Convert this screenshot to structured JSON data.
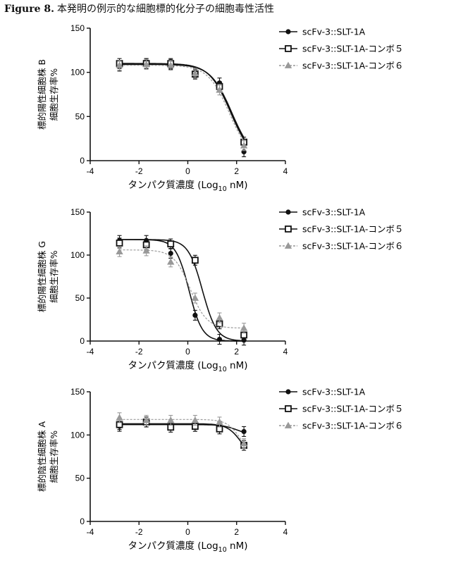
{
  "figure": {
    "label": "Figure 8.",
    "title": "本発明の例示的な細胞標的化分子の細胞毒性活性"
  },
  "chart_data": [
    {
      "type": "line",
      "xlabel_main": "タンパク質濃度 (Log",
      "xlabel_sub": "10",
      "xlabel_end": " nM)",
      "ylabel_lines": [
        "標的陽性細胞株 B",
        "細胞生存率%"
      ],
      "xlim": [
        -4,
        4
      ],
      "ylim": [
        0,
        150
      ],
      "xticks": [
        -4,
        -2,
        0,
        2,
        4
      ],
      "yticks": [
        0,
        50,
        100,
        150
      ],
      "series": [
        {
          "name": "scFv-3::SLT-1A",
          "marker": "circle",
          "color": "#111111",
          "x": [
            -2.8,
            -1.7,
            -0.7,
            0.3,
            1.3,
            2.3
          ],
          "y": [
            107,
            110,
            109,
            100,
            88,
            10
          ],
          "curve": {
            "top": 109,
            "bottom": 0,
            "ec50": 1.8,
            "hill": 1.0
          }
        },
        {
          "name": "scFv-3::SLT-1A-コンボ５",
          "marker": "square",
          "color": "#111111",
          "x": [
            -2.8,
            -1.7,
            -0.7,
            0.3,
            1.3,
            2.3
          ],
          "y": [
            110,
            110,
            110,
            98,
            84,
            21
          ],
          "curve": {
            "top": 110,
            "bottom": 0,
            "ec50": 1.75,
            "hill": 1.0
          }
        },
        {
          "name": "scFv-3::SLT-1A-コンボ６",
          "marker": "triangle",
          "color": "#999999",
          "x": [
            -2.8,
            -1.7,
            -0.7,
            0.3,
            1.3,
            2.3
          ],
          "y": [
            108,
            109,
            108,
            99,
            80,
            17
          ],
          "curve": {
            "top": 108,
            "bottom": 0,
            "ec50": 1.7,
            "hill": 1.0
          }
        }
      ]
    },
    {
      "type": "line",
      "xlabel_main": "タンパク質濃度 (Log",
      "xlabel_sub": "10",
      "xlabel_end": " nM)",
      "ylabel_lines": [
        "標的陽性細胞株 G",
        "細胞生存率%"
      ],
      "xlim": [
        -4,
        4
      ],
      "ylim": [
        0,
        150
      ],
      "xticks": [
        -4,
        -2,
        0,
        2,
        4
      ],
      "yticks": [
        0,
        50,
        100,
        150
      ],
      "series": [
        {
          "name": "scFv-3::SLT-1A",
          "marker": "circle",
          "color": "#111111",
          "x": [
            -2.8,
            -1.7,
            -0.7,
            0.3,
            1.3,
            2.3
          ],
          "y": [
            117,
            117,
            102,
            30,
            2,
            1
          ],
          "curve": {
            "top": 118,
            "bottom": 0,
            "ec50": 0.05,
            "hill": 1.6
          }
        },
        {
          "name": "scFv-3::SLT-1A-コンボ５",
          "marker": "square",
          "color": "#111111",
          "x": [
            -2.8,
            -1.7,
            -0.7,
            0.3,
            1.3,
            2.3
          ],
          "y": [
            114,
            112,
            113,
            94,
            20,
            7
          ],
          "curve": {
            "top": 118,
            "bottom": 0,
            "ec50": 0.6,
            "hill": 1.5
          }
        },
        {
          "name": "scFv-3::SLT-1A-コンボ６",
          "marker": "triangle",
          "color": "#999999",
          "x": [
            -2.8,
            -1.7,
            -0.7,
            0.3,
            1.3,
            2.3
          ],
          "y": [
            104,
            105,
            92,
            50,
            27,
            15
          ],
          "curve": {
            "top": 106,
            "bottom": 15,
            "ec50": 0.1,
            "hill": 1.3
          }
        }
      ]
    },
    {
      "type": "line",
      "xlabel_main": "タンパク質濃度 (Log",
      "xlabel_sub": "10",
      "xlabel_end": " nM)",
      "ylabel_lines": [
        "標的陰性細胞株 A",
        "細胞生存率%"
      ],
      "xlim": [
        -4,
        4
      ],
      "ylim": [
        0,
        150
      ],
      "xticks": [
        -4,
        -2,
        0,
        2,
        4
      ],
      "yticks": [
        0,
        50,
        100,
        150
      ],
      "series": [
        {
          "name": "scFv-3::SLT-1A",
          "marker": "circle",
          "color": "#111111",
          "x": [
            -2.8,
            -1.7,
            -0.7,
            0.3,
            1.3,
            2.3
          ],
          "y": [
            110,
            115,
            112,
            110,
            110,
            104
          ],
          "curve": {
            "top": 112,
            "bottom": 100,
            "ec50": 2.0,
            "hill": 1.5
          }
        },
        {
          "name": "scFv-3::SLT-1A-コンボ５",
          "marker": "square",
          "color": "#111111",
          "x": [
            -2.8,
            -1.7,
            -0.7,
            0.3,
            1.3,
            2.3
          ],
          "y": [
            112,
            115,
            109,
            110,
            107,
            88
          ],
          "curve": {
            "top": 113,
            "bottom": 70,
            "ec50": 2.2,
            "hill": 1.5
          }
        },
        {
          "name": "scFv-3::SLT-1A-コンボ６",
          "marker": "triangle",
          "color": "#999999",
          "x": [
            -2.8,
            -1.7,
            -0.7,
            0.3,
            1.3,
            2.3
          ],
          "y": [
            120,
            117,
            117,
            117,
            115,
            90
          ],
          "curve": {
            "top": 118,
            "bottom": 70,
            "ec50": 2.2,
            "hill": 1.5
          }
        }
      ]
    }
  ]
}
